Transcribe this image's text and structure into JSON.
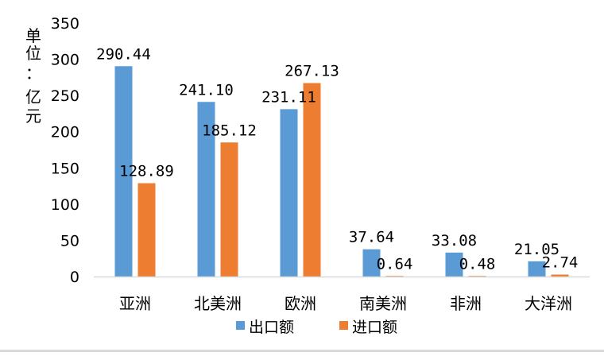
{
  "chart_data": {
    "type": "bar",
    "categories": [
      "亚洲",
      "北美洲",
      "欧洲",
      "南美洲",
      "非洲",
      "大洋洲"
    ],
    "series": [
      {
        "name": "出口额",
        "values": [
          290.44,
          241.1,
          231.11,
          37.64,
          33.08,
          21.05
        ],
        "color": "#5b9bd5"
      },
      {
        "name": "进口额",
        "values": [
          128.89,
          185.12,
          267.13,
          0.64,
          0.48,
          2.74
        ],
        "color": "#ed7d31"
      }
    ],
    "data_labels": [
      [
        "290.44",
        "241.10",
        "231.11",
        "37.64",
        "33.08",
        "21.05"
      ],
      [
        "128.89",
        "185.12",
        "267.13",
        "0.64",
        "0.48",
        "2.74"
      ]
    ],
    "ylabel": "单位：亿元",
    "ylabel_lines": [
      "单",
      "位",
      "：",
      "亿",
      "元"
    ],
    "ylim": [
      0,
      350
    ],
    "yticks": [
      0,
      50,
      100,
      150,
      200,
      250,
      300,
      350
    ],
    "grid": false,
    "legend": "bottom"
  }
}
